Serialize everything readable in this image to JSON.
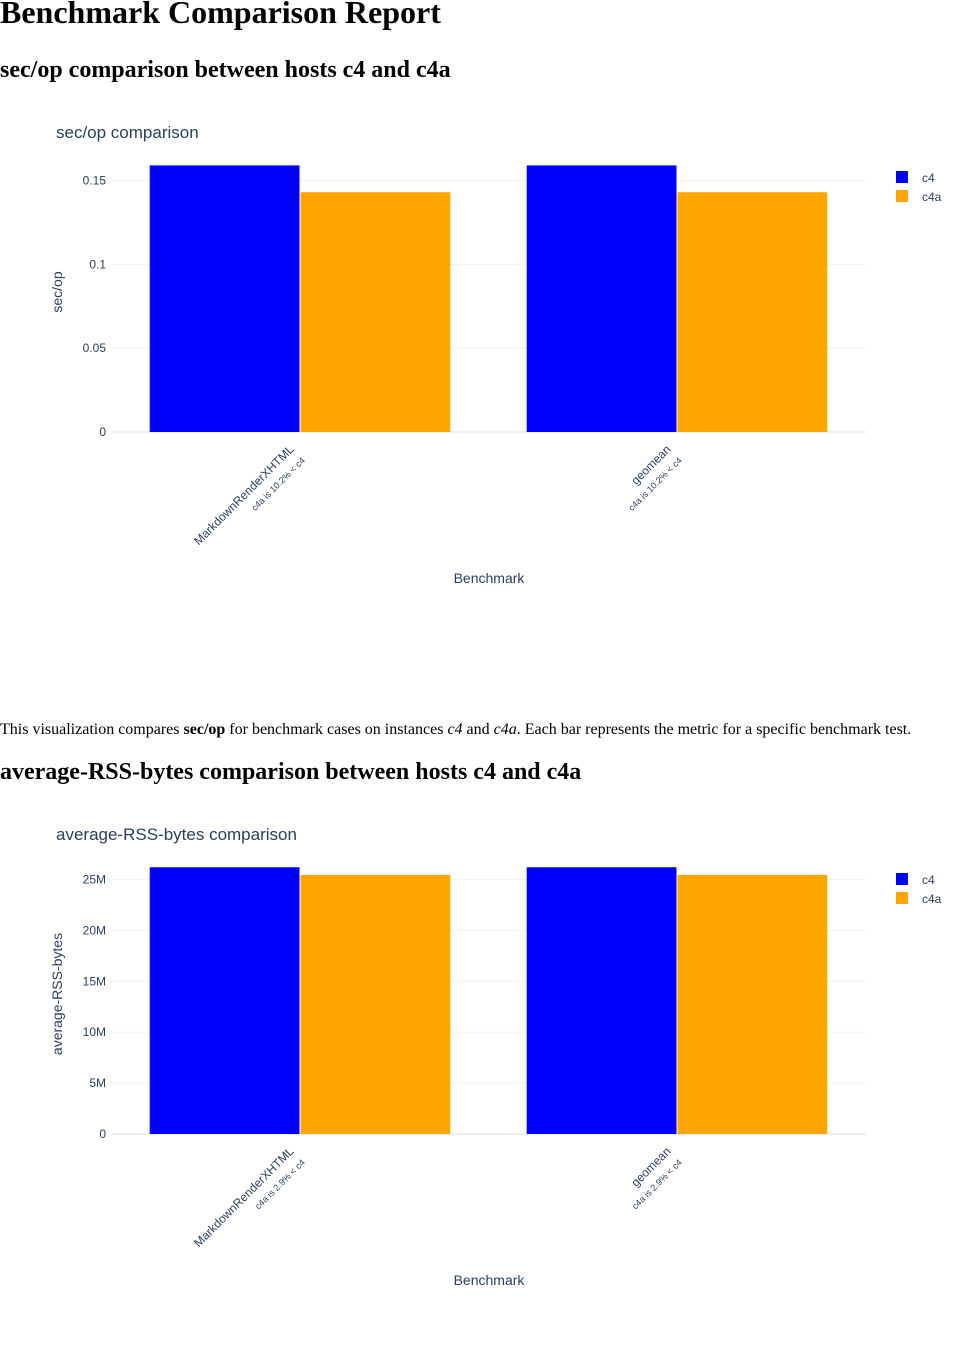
{
  "page": {
    "title": "Benchmark Comparison Report",
    "section1_heading": "sec/op comparison between hosts c4 and c4a",
    "description": {
      "t1": "This visualization compares ",
      "metric": "sec/op",
      "t2": " for benchmark cases on instances ",
      "host1": "c4",
      "t3": " and ",
      "host2": "c4a",
      "t4": ". Each bar represents the metric for a specific benchmark test."
    },
    "section2_heading": "average-RSS-bytes comparison between hosts c4 and c4a"
  },
  "colors": {
    "c4": "#0000ff",
    "c4a": "#ffa500"
  },
  "chart_data": [
    {
      "type": "bar",
      "title": "sec/op comparison",
      "xlabel": "Benchmark",
      "ylabel": "sec/op",
      "categories": [
        "MarkdownRenderXHTML",
        "geomean"
      ],
      "category_notes": [
        "c4a is 10.2% < c4",
        "c4a is 10.2% < c4"
      ],
      "series": [
        {
          "name": "c4",
          "values": [
            0.159,
            0.159
          ]
        },
        {
          "name": "c4a",
          "values": [
            0.143,
            0.143
          ]
        }
      ],
      "ylim": [
        0,
        0.167
      ],
      "yticks": [
        0,
        0.05,
        0.1,
        0.15
      ],
      "ytick_labels": [
        "0",
        "0.05",
        "0.1",
        "0.15"
      ],
      "grid": true,
      "legend": "top-right"
    },
    {
      "type": "bar",
      "title": "average-RSS-bytes comparison",
      "xlabel": "Benchmark",
      "ylabel": "average-RSS-bytes",
      "categories": [
        "MarkdownRenderXHTML",
        "geomean"
      ],
      "category_notes": [
        "c4a is 2.9% < c4",
        "c4a is 2.9% < c4"
      ],
      "series": [
        {
          "name": "c4",
          "values": [
            26200000,
            26200000
          ]
        },
        {
          "name": "c4a",
          "values": [
            25450000,
            25450000
          ]
        }
      ],
      "ylim": [
        0,
        27500000
      ],
      "yticks": [
        0,
        5000000,
        10000000,
        15000000,
        20000000,
        25000000
      ],
      "ytick_labels": [
        "0",
        "5M",
        "10M",
        "15M",
        "20M",
        "25M"
      ],
      "grid": true,
      "legend": "top-right"
    }
  ]
}
